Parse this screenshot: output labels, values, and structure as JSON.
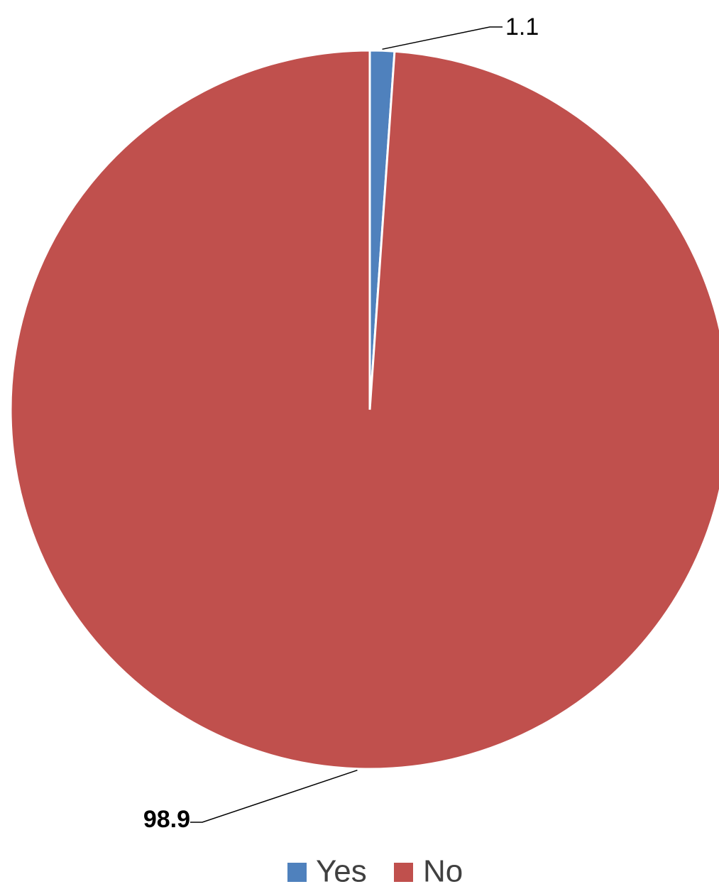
{
  "chart_data": {
    "type": "pie",
    "title": "",
    "legend_position": "bottom",
    "slices": [
      {
        "name": "Yes",
        "value": 1.1,
        "label": "1.1",
        "color": "#4F81BD"
      },
      {
        "name": "No",
        "value": 98.9,
        "label": "98.9",
        "color": "#C0504D"
      }
    ]
  }
}
